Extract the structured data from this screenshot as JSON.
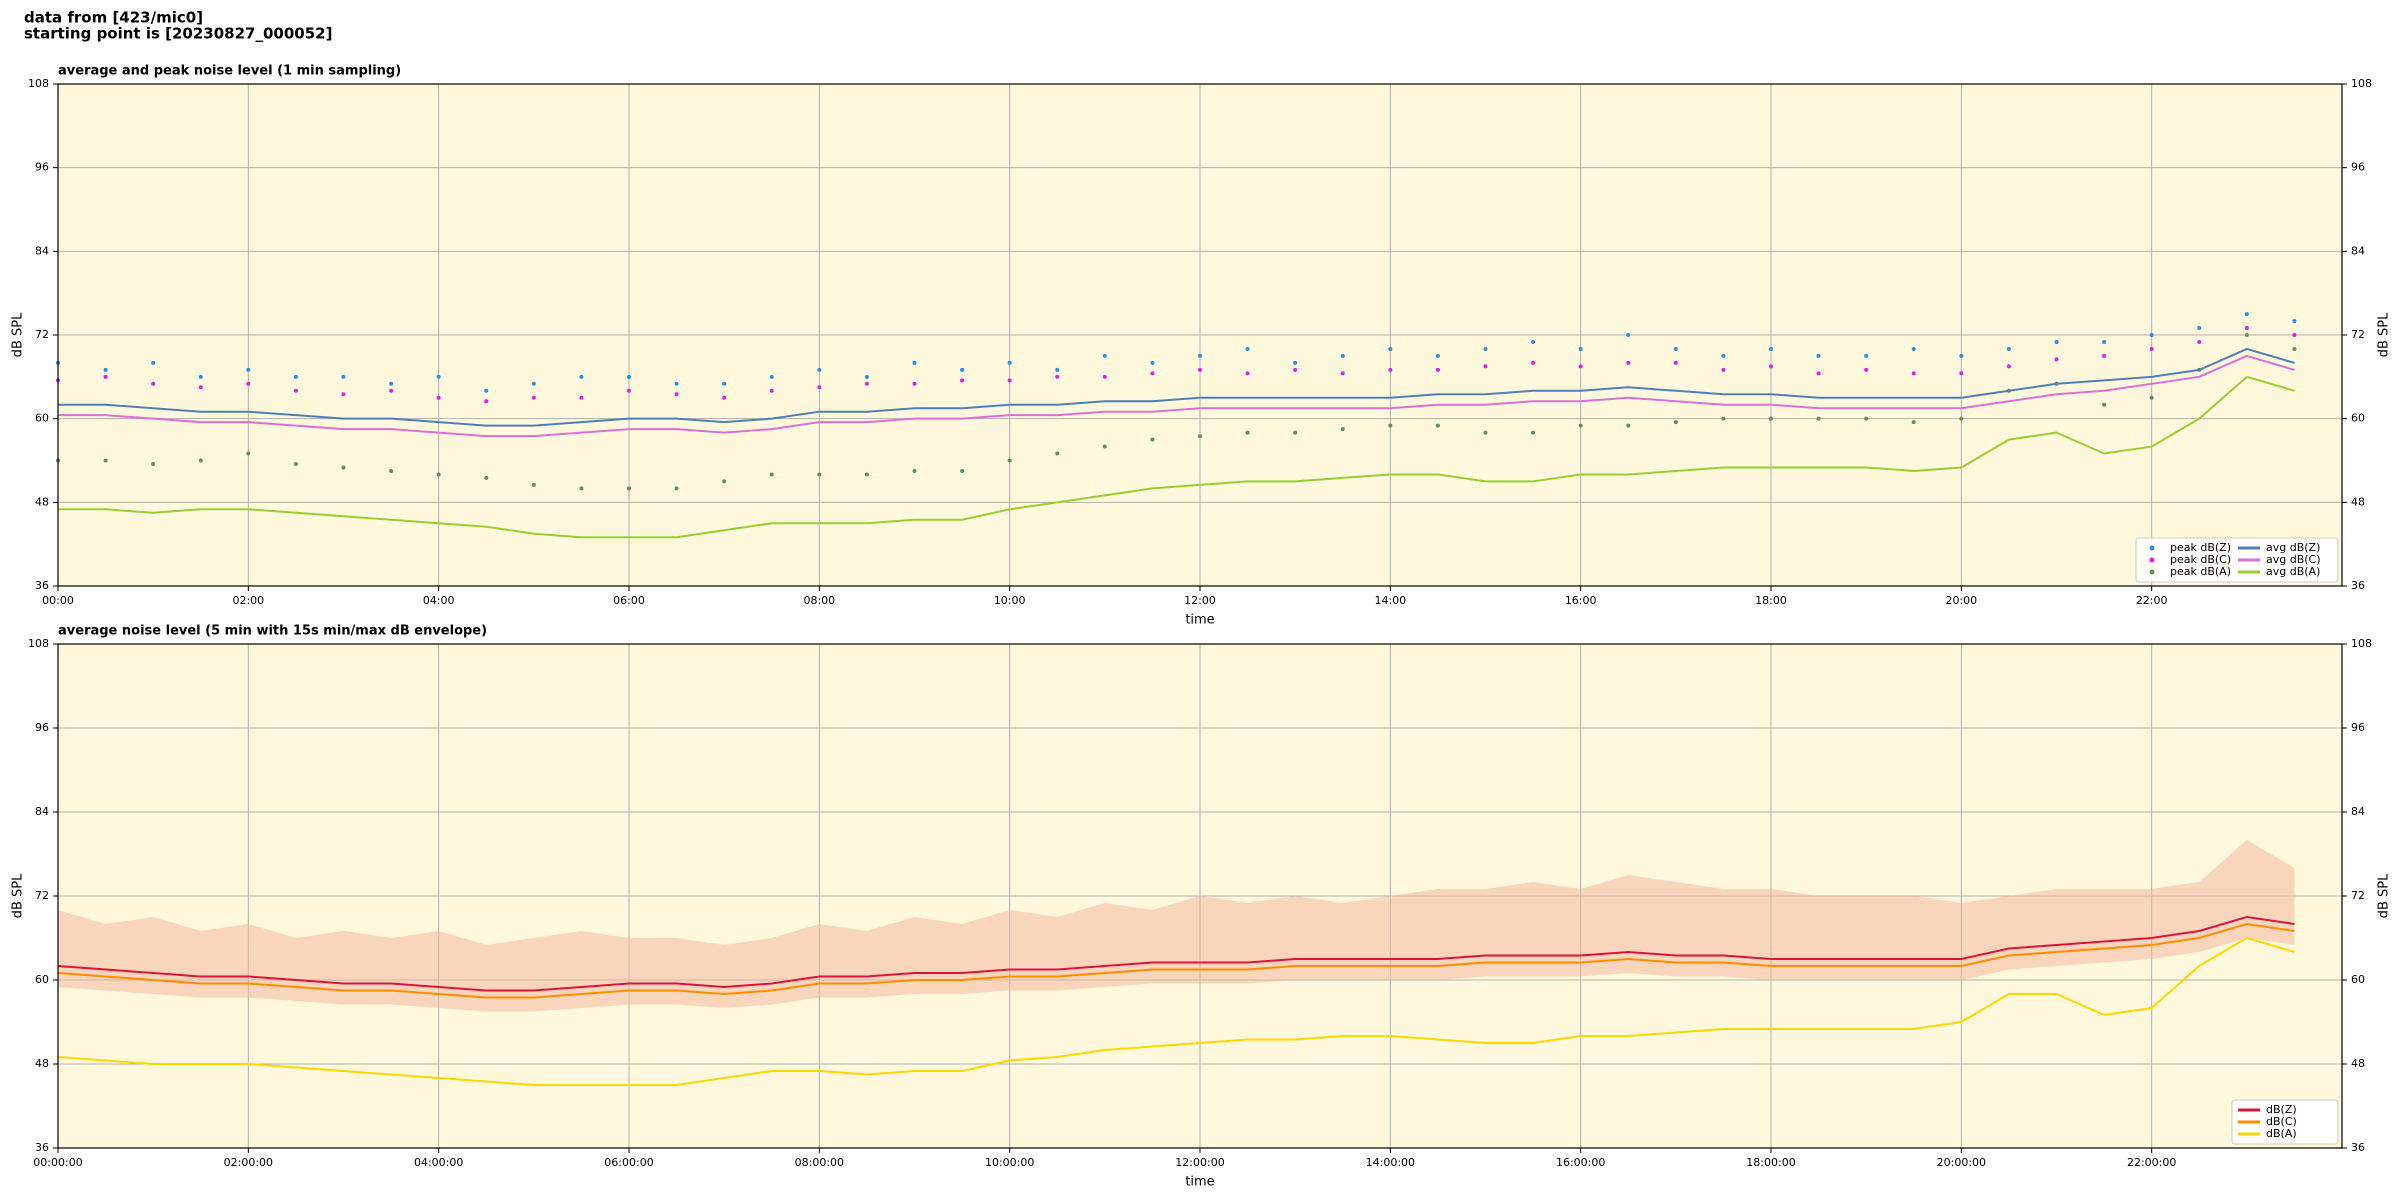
{
  "header": {
    "lines": [
      "data from [423/mic0]",
      "starting point is [20230827_000052]"
    ]
  },
  "chart_data": [
    {
      "type": "line",
      "title": "average and peak noise level (1 min sampling)",
      "xlabel": "time",
      "ylabel": "dB SPL",
      "x": [
        0,
        0.5,
        1,
        1.5,
        2,
        2.5,
        3,
        3.5,
        4,
        4.5,
        5,
        5.5,
        6,
        6.5,
        7,
        7.5,
        8,
        8.5,
        9,
        9.5,
        10,
        10.5,
        11,
        11.5,
        12,
        12.5,
        13,
        13.5,
        14,
        14.5,
        15,
        15.5,
        16,
        16.5,
        17,
        17.5,
        18,
        18.5,
        19,
        19.5,
        20,
        20.5,
        21,
        21.5,
        22,
        22.5,
        23,
        23.5
      ],
      "xlim": [
        0,
        24
      ],
      "xticks": [
        {
          "value": 0,
          "label": "00:00"
        },
        {
          "value": 2,
          "label": "02:00"
        },
        {
          "value": 4,
          "label": "04:00"
        },
        {
          "value": 6,
          "label": "06:00"
        },
        {
          "value": 8,
          "label": "08:00"
        },
        {
          "value": 10,
          "label": "10:00"
        },
        {
          "value": 12,
          "label": "12:00"
        },
        {
          "value": 14,
          "label": "14:00"
        },
        {
          "value": 16,
          "label": "16:00"
        },
        {
          "value": 18,
          "label": "18:00"
        },
        {
          "value": 20,
          "label": "20:00"
        },
        {
          "value": 22,
          "label": "22:00"
        }
      ],
      "ylim": [
        36,
        108
      ],
      "yticks": [
        36,
        48,
        60,
        72,
        84,
        96,
        108
      ],
      "grid": true,
      "legend": "lower right",
      "background": "#fff8dc",
      "series": [
        {
          "name": "peak dB(Z)",
          "color": "#2a8fe0",
          "style": "points",
          "values": [
            68,
            67,
            68,
            66,
            67,
            66,
            66,
            65,
            66,
            64,
            65,
            66,
            66,
            65,
            65,
            66,
            67,
            66,
            68,
            67,
            68,
            67,
            69,
            68,
            69,
            70,
            68,
            69,
            70,
            69,
            70,
            71,
            70,
            72,
            70,
            69,
            70,
            69,
            69,
            70,
            69,
            70,
            71,
            71,
            72,
            73,
            75,
            74
          ]
        },
        {
          "name": "peak dB(C)",
          "color": "#e020e0",
          "style": "points",
          "values": [
            65.5,
            66,
            65,
            64.5,
            65,
            64,
            63.5,
            64,
            63,
            62.5,
            63,
            63,
            64,
            63.5,
            63,
            64,
            64.5,
            65,
            65,
            65.5,
            65.5,
            66,
            66,
            66.5,
            67,
            66.5,
            67,
            66.5,
            67,
            67,
            67.5,
            68,
            67.5,
            68,
            68,
            67,
            67.5,
            66.5,
            67,
            66.5,
            66.5,
            67.5,
            68.5,
            69,
            70,
            71,
            73,
            72
          ]
        },
        {
          "name": "peak dB(A)",
          "color": "#5f8f5f",
          "style": "points",
          "values": [
            54,
            54,
            53.5,
            54,
            55,
            53.5,
            53,
            52.5,
            52,
            51.5,
            50.5,
            50,
            50,
            50,
            51,
            52,
            52,
            52,
            52.5,
            52.5,
            54,
            55,
            56,
            57,
            57.5,
            58,
            58,
            58.5,
            59,
            59,
            58,
            58,
            59,
            59,
            59.5,
            60,
            60,
            60,
            60,
            59.5,
            60,
            64,
            65,
            62,
            63,
            67,
            72,
            70
          ]
        },
        {
          "name": "avg dB(Z)",
          "color": "#4f7fb8",
          "style": "line",
          "values": [
            62,
            62,
            61.5,
            61,
            61,
            60.5,
            60,
            60,
            59.5,
            59,
            59,
            59.5,
            60,
            60,
            59.5,
            60,
            61,
            61,
            61.5,
            61.5,
            62,
            62,
            62.5,
            62.5,
            63,
            63,
            63,
            63,
            63,
            63.5,
            63.5,
            64,
            64,
            64.5,
            64,
            63.5,
            63.5,
            63,
            63,
            63,
            63,
            64,
            65,
            65.5,
            66,
            67,
            70,
            68
          ]
        },
        {
          "name": "avg dB(C)",
          "color": "#da70d6",
          "style": "line",
          "values": [
            60.5,
            60.5,
            60,
            59.5,
            59.5,
            59,
            58.5,
            58.5,
            58,
            57.5,
            57.5,
            58,
            58.5,
            58.5,
            58,
            58.5,
            59.5,
            59.5,
            60,
            60,
            60.5,
            60.5,
            61,
            61,
            61.5,
            61.5,
            61.5,
            61.5,
            61.5,
            62,
            62,
            62.5,
            62.5,
            63,
            62.5,
            62,
            62,
            61.5,
            61.5,
            61.5,
            61.5,
            62.5,
            63.5,
            64,
            65,
            66,
            69,
            67
          ]
        },
        {
          "name": "avg dB(A)",
          "color": "#9acd32",
          "style": "line",
          "values": [
            47,
            47,
            46.5,
            47,
            47,
            46.5,
            46,
            45.5,
            45,
            44.5,
            43.5,
            43,
            43,
            43,
            44,
            45,
            45,
            45,
            45.5,
            45.5,
            47,
            48,
            49,
            50,
            50.5,
            51,
            51,
            51.5,
            52,
            52,
            51,
            51,
            52,
            52,
            52.5,
            53,
            53,
            53,
            53,
            52.5,
            53,
            57,
            58,
            55,
            56,
            60,
            66,
            64
          ]
        }
      ]
    },
    {
      "type": "line",
      "title": "average noise level (5 min with 15s min/max dB envelope)",
      "xlabel": "time",
      "ylabel": "dB SPL",
      "x": [
        0,
        0.5,
        1,
        1.5,
        2,
        2.5,
        3,
        3.5,
        4,
        4.5,
        5,
        5.5,
        6,
        6.5,
        7,
        7.5,
        8,
        8.5,
        9,
        9.5,
        10,
        10.5,
        11,
        11.5,
        12,
        12.5,
        13,
        13.5,
        14,
        14.5,
        15,
        15.5,
        16,
        16.5,
        17,
        17.5,
        18,
        18.5,
        19,
        19.5,
        20,
        20.5,
        21,
        21.5,
        22,
        22.5,
        23,
        23.5
      ],
      "xlim": [
        0,
        24
      ],
      "xticks": [
        {
          "value": 0,
          "label": "00:00:00"
        },
        {
          "value": 2,
          "label": "02:00:00"
        },
        {
          "value": 4,
          "label": "04:00:00"
        },
        {
          "value": 6,
          "label": "06:00:00"
        },
        {
          "value": 8,
          "label": "08:00:00"
        },
        {
          "value": 10,
          "label": "10:00:00"
        },
        {
          "value": 12,
          "label": "12:00:00"
        },
        {
          "value": 14,
          "label": "14:00:00"
        },
        {
          "value": 16,
          "label": "16:00:00"
        },
        {
          "value": 18,
          "label": "18:00:00"
        },
        {
          "value": 20,
          "label": "20:00:00"
        },
        {
          "value": 22,
          "label": "22:00:00"
        }
      ],
      "ylim": [
        36,
        108
      ],
      "yticks": [
        36,
        48,
        60,
        72,
        84,
        96,
        108
      ],
      "grid": true,
      "legend": "lower right",
      "background": "#fff8dc",
      "envelope": {
        "color": "#f4b9a0",
        "low": [
          59,
          58.5,
          58,
          57.5,
          57.5,
          57,
          56.5,
          56.5,
          56,
          55.5,
          55.5,
          56,
          56.5,
          56.5,
          56,
          56.5,
          57.5,
          57.5,
          58,
          58,
          58.5,
          58.5,
          59,
          59.5,
          59.5,
          59.5,
          60,
          60,
          60,
          60,
          60.5,
          60.5,
          60.5,
          61,
          60.5,
          60.5,
          60,
          60,
          60,
          60,
          60,
          61.5,
          62,
          62.5,
          63,
          64,
          66,
          65
        ],
        "high": [
          70,
          68,
          69,
          67,
          68,
          66,
          67,
          66,
          67,
          65,
          66,
          67,
          66,
          66,
          65,
          66,
          68,
          67,
          69,
          68,
          70,
          69,
          71,
          70,
          72,
          71,
          72,
          71,
          72,
          73,
          73,
          74,
          73,
          75,
          74,
          73,
          73,
          72,
          72,
          72,
          71,
          72,
          73,
          73,
          73,
          74,
          80,
          76
        ]
      },
      "series": [
        {
          "name": "dB(Z)",
          "color": "#dc143c",
          "style": "line",
          "values": [
            62,
            61.5,
            61,
            60.5,
            60.5,
            60,
            59.5,
            59.5,
            59,
            58.5,
            58.5,
            59,
            59.5,
            59.5,
            59,
            59.5,
            60.5,
            60.5,
            61,
            61,
            61.5,
            61.5,
            62,
            62.5,
            62.5,
            62.5,
            63,
            63,
            63,
            63,
            63.5,
            63.5,
            63.5,
            64,
            63.5,
            63.5,
            63,
            63,
            63,
            63,
            63,
            64.5,
            65,
            65.5,
            66,
            67,
            69,
            68
          ]
        },
        {
          "name": "dB(C)",
          "color": "#ff8c00",
          "style": "line",
          "values": [
            61,
            60.5,
            60,
            59.5,
            59.5,
            59,
            58.5,
            58.5,
            58,
            57.5,
            57.5,
            58,
            58.5,
            58.5,
            58,
            58.5,
            59.5,
            59.5,
            60,
            60,
            60.5,
            60.5,
            61,
            61.5,
            61.5,
            61.5,
            62,
            62,
            62,
            62,
            62.5,
            62.5,
            62.5,
            63,
            62.5,
            62.5,
            62,
            62,
            62,
            62,
            62,
            63.5,
            64,
            64.5,
            65,
            66,
            68,
            67
          ]
        },
        {
          "name": "dB(A)",
          "color": "#ffd700",
          "style": "line",
          "values": [
            49,
            48.5,
            48,
            48,
            48,
            47.5,
            47,
            46.5,
            46,
            45.5,
            45,
            45,
            45,
            45,
            46,
            47,
            47,
            46.5,
            47,
            47,
            48.5,
            49,
            50,
            50.5,
            51,
            51.5,
            51.5,
            52,
            52,
            51.5,
            51,
            51,
            52,
            52,
            52.5,
            53,
            53,
            53,
            53,
            53,
            54,
            58,
            58,
            55,
            56,
            62,
            66,
            64
          ]
        }
      ]
    }
  ]
}
